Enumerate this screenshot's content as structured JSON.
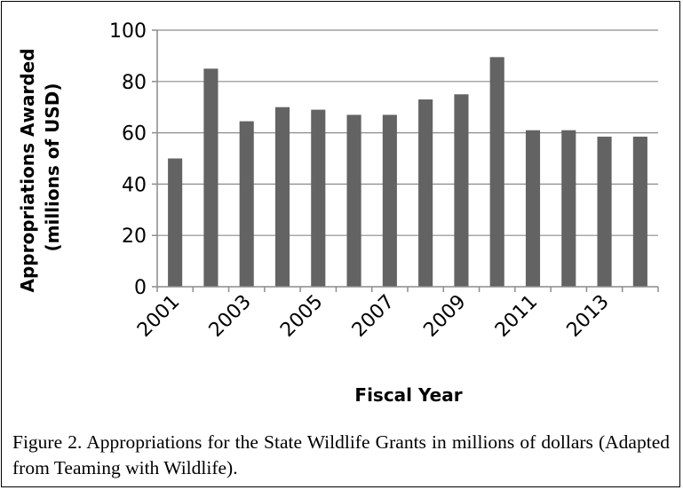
{
  "chart_data": {
    "type": "bar",
    "title": "",
    "xlabel": "Fiscal Year",
    "ylabel_lines": [
      "Appropriations Awarded",
      "(millions of USD)"
    ],
    "categories": [
      "2001",
      "2002",
      "2003",
      "2004",
      "2005",
      "2006",
      "2007",
      "2008",
      "2009",
      "2010",
      "2011",
      "2012",
      "2013",
      "2014"
    ],
    "x_tick_labels": [
      "2001",
      "",
      "2003",
      "",
      "2005",
      "",
      "2007",
      "",
      "2009",
      "",
      "2011",
      "",
      "2013",
      ""
    ],
    "values": [
      50,
      85,
      64.5,
      70,
      69,
      67,
      67,
      73,
      75,
      89.5,
      61,
      61,
      58.5,
      58.5
    ],
    "ylim": [
      0,
      100
    ],
    "yticks": [
      0,
      20,
      40,
      60,
      80,
      100
    ],
    "grid": true,
    "bar_color": "#636363",
    "grid_color": "#8c8c8c"
  },
  "caption": "Figure 2. Appropriations for the State Wildlife Grants in millions of dollars (Adapted from Teaming with Wildlife)."
}
